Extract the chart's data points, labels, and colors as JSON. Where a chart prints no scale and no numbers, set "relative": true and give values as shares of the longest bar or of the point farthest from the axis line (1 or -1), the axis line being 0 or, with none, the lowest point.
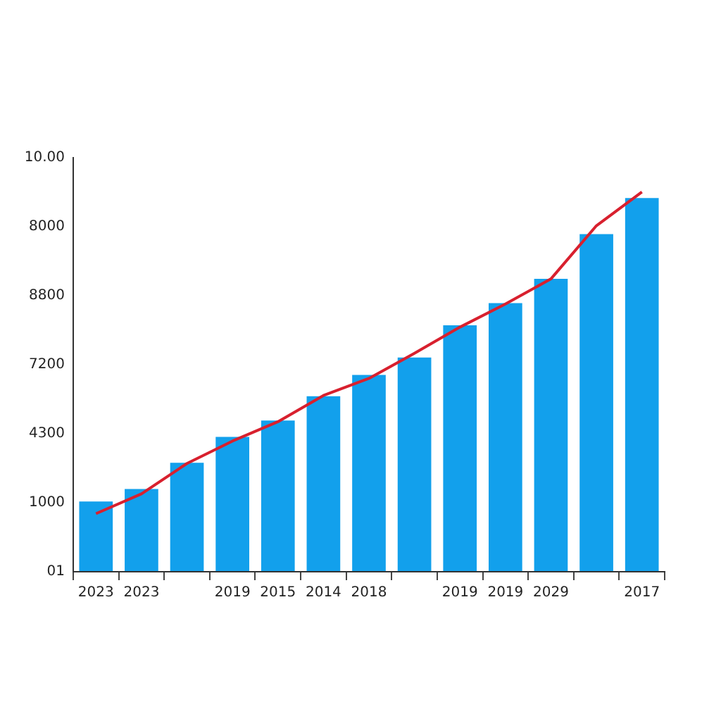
{
  "chart_data": {
    "type": "bar",
    "relative": true,
    "categories": [
      "2023",
      "2023",
      null,
      "2019",
      "2015",
      "2014",
      "2018",
      null,
      "2019",
      "2019",
      "2029",
      null,
      "2017"
    ],
    "series": [
      {
        "color": "#12a0ec",
        "values": [
          0.185,
          0.218,
          0.287,
          0.355,
          0.398,
          0.462,
          0.518,
          0.564,
          0.649,
          0.707,
          0.771,
          0.889,
          0.984
        ]
      },
      {
        "type": "line",
        "color": "#d8202e",
        "values": [
          0.153,
          0.205,
          0.285,
          0.344,
          0.395,
          0.464,
          0.509,
          0.575,
          0.644,
          0.705,
          0.771,
          0.911,
          1
        ]
      }
    ],
    "annotations": [
      "01",
      "1000",
      "4300",
      "7200",
      "8800",
      "8000",
      "10.00"
    ],
    "grid": false,
    "legend": false,
    "marker": "none",
    "line_style": "solid"
  }
}
